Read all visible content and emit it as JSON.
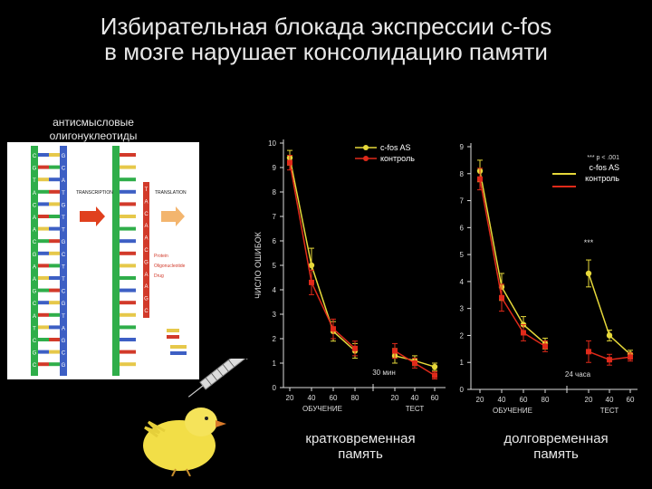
{
  "title": {
    "line1": "Избирательная блокада экспрессии c-fos",
    "line2": "в мозге нарушает консолидацию памяти"
  },
  "illustration": {
    "caption_line1": "антисмысловые",
    "caption_line2": "олигонуклеотиды",
    "transcription_label": "TRANSCRIPTION",
    "translation_label": "TRANSLATION",
    "protein_label_line1": "Protein",
    "protein_label_line2": "Oligonucleotide",
    "protein_label_line3": "Drug",
    "dna_left_letters": [
      "C",
      "G",
      "T",
      "A",
      "C",
      "A",
      "A",
      "C",
      "G",
      "A",
      "A",
      "G",
      "C",
      "A",
      "T",
      "C",
      "G",
      "C"
    ],
    "dna_right_letters": [
      "G",
      "C",
      "A",
      "T",
      "G",
      "T",
      "T",
      "G",
      "C",
      "T",
      "T",
      "C",
      "G",
      "T",
      "A",
      "G",
      "C",
      "G"
    ],
    "colors": {
      "blue": "#3d5fc4",
      "green": "#2fae4a",
      "red": "#d23a2a",
      "yellow": "#e6c84a",
      "orange": "#e8891a"
    }
  },
  "bottom_labels": {
    "left_line1": "кратковременная",
    "left_line2": "память",
    "right_line1": "долговременная",
    "right_line2": "память"
  },
  "chart_data": [
    {
      "type": "line",
      "ylabel": "ЧИСЛО ОШИБОК",
      "ylim": [
        0,
        10
      ],
      "yticks": [
        0,
        1,
        2,
        3,
        4,
        5,
        6,
        7,
        8,
        9,
        10
      ],
      "segments": [
        {
          "label": "ОБУЧЕНИЕ",
          "x": [
            20,
            40,
            60,
            80
          ],
          "tick_labels": [
            "20",
            "40",
            "60",
            "80"
          ]
        },
        {
          "label": "ТЕСТ",
          "x": [
            20,
            40,
            60
          ],
          "tick_labels": [
            "20",
            "40",
            "60"
          ]
        }
      ],
      "gap_label": "30 мин",
      "legend": {
        "position": "top-right"
      },
      "series": [
        {
          "name": "c-fos  AS",
          "color": "#e6d83a",
          "training": [
            9.4,
            5.0,
            2.3,
            1.5
          ],
          "test": [
            1.3,
            1.1,
            0.85
          ],
          "training_err": [
            0.3,
            0.7,
            0.4,
            0.3
          ],
          "test_err": [
            0.3,
            0.2,
            0.15
          ]
        },
        {
          "name": "контроль",
          "color": "#e02a1a",
          "training": [
            9.2,
            4.3,
            2.4,
            1.6
          ],
          "test": [
            1.5,
            1.0,
            0.5
          ],
          "training_err": [
            0.3,
            0.5,
            0.4,
            0.3
          ],
          "test_err": [
            0.3,
            0.2,
            0.15
          ]
        }
      ]
    },
    {
      "type": "line",
      "ylim": [
        0,
        9
      ],
      "yticks": [
        0,
        1,
        2,
        3,
        4,
        5,
        6,
        7,
        8,
        9
      ],
      "segments": [
        {
          "label": "ОБУЧЕНИЕ",
          "x": [
            20,
            40,
            60,
            80
          ],
          "tick_labels": [
            "20",
            "40",
            "60",
            "80"
          ]
        },
        {
          "label": "ТЕСТ",
          "x": [
            20,
            40,
            60
          ],
          "tick_labels": [
            "20",
            "40",
            "60"
          ]
        }
      ],
      "gap_label": "24 часа",
      "annotations": [
        "*** p < .001",
        "***"
      ],
      "legend": {
        "position": "top-right"
      },
      "series": [
        {
          "name": "c-fos AS",
          "color": "#e6d83a",
          "training": [
            8.1,
            3.8,
            2.4,
            1.7
          ],
          "test": [
            4.3,
            2.0,
            1.3
          ],
          "training_err": [
            0.4,
            0.5,
            0.3,
            0.2
          ],
          "test_err": [
            0.5,
            0.2,
            0.15
          ]
        },
        {
          "name": "контроль",
          "color": "#e02a1a",
          "training": [
            7.8,
            3.4,
            2.1,
            1.6
          ],
          "test": [
            1.4,
            1.1,
            1.2
          ],
          "training_err": [
            0.4,
            0.5,
            0.3,
            0.2
          ],
          "test_err": [
            0.4,
            0.2,
            0.15
          ]
        }
      ]
    }
  ]
}
